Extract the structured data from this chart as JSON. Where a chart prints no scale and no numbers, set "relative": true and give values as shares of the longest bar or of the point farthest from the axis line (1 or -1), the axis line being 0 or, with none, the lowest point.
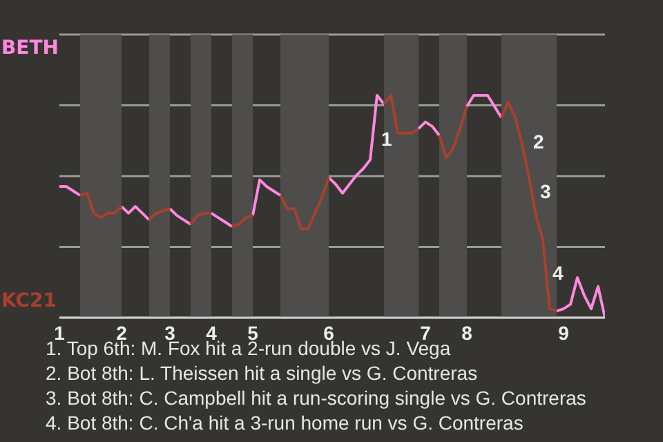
{
  "chart_data": {
    "type": "line",
    "relative": true,
    "categories": [
      "1",
      null,
      null,
      null,
      null,
      null,
      null,
      null,
      null,
      "2",
      null,
      null,
      null,
      null,
      null,
      null,
      "3",
      null,
      null,
      null,
      null,
      null,
      "4",
      null,
      null,
      null,
      null,
      null,
      "5",
      null,
      null,
      null,
      null,
      null,
      null,
      null,
      null,
      null,
      null,
      "6",
      null,
      null,
      null,
      null,
      null,
      null,
      null,
      null,
      null,
      null,
      null,
      null,
      null,
      "7",
      null,
      null,
      null,
      null,
      null,
      "8",
      null,
      null,
      null,
      null,
      null,
      null,
      null,
      null,
      null,
      null,
      null,
      null,
      null,
      "9",
      null,
      null,
      null,
      null,
      null,
      null
    ],
    "grid": "y",
    "marker": "none",
    "line_style": "solid",
    "series": [
      {
        "name": "BETH",
        "color": "#ff88e0",
        "values": [
          0.59,
          0.59,
          0.57,
          0.55,
          null,
          null,
          null,
          null,
          null,
          0.5,
          0.47,
          0.5,
          0.47,
          0.44,
          null,
          null,
          0.49,
          0.46,
          0.44,
          0.42,
          null,
          null,
          0.47,
          0.45,
          0.43,
          0.41,
          null,
          null,
          0.46,
          0.62,
          0.59,
          0.57,
          0.55,
          null,
          null,
          null,
          null,
          null,
          null,
          0.63,
          0.6,
          0.56,
          0.6,
          0.64,
          0.67,
          0.71,
          1,
          0.96,
          null,
          null,
          null,
          null,
          0.85,
          0.88,
          0.86,
          0.82,
          null,
          null,
          null,
          0.95,
          1,
          1,
          1,
          0.95,
          0.9,
          null,
          null,
          null,
          null,
          null,
          null,
          null,
          0.03,
          0.04,
          0.06,
          0.18,
          0.1,
          0.04,
          0.14,
          0
        ]
      },
      {
        "name": "KC21",
        "color": "#a8402e",
        "values": [
          null,
          null,
          null,
          0.55,
          0.56,
          0.47,
          0.45,
          0.47,
          0.47,
          0.5,
          null,
          null,
          null,
          0.44,
          0.47,
          0.48,
          0.49,
          null,
          null,
          0.42,
          0.46,
          0.47,
          0.47,
          null,
          null,
          0.41,
          0.42,
          0.45,
          0.46,
          null,
          null,
          null,
          0.55,
          0.49,
          0.49,
          0.4,
          0.4,
          0.47,
          0.54,
          0.63,
          null,
          null,
          null,
          null,
          null,
          null,
          null,
          0.96,
          1,
          0.83,
          0.83,
          0.83,
          0.85,
          null,
          null,
          0.82,
          0.72,
          0.76,
          0.85,
          0.95,
          null,
          null,
          null,
          null,
          0.9,
          0.97,
          0.9,
          0.78,
          0.63,
          0.46,
          0.35,
          0.04,
          0.03,
          null,
          null,
          null,
          null,
          null,
          null,
          null
        ]
      }
    ],
    "annotations": [
      "1",
      "2",
      "3",
      "4",
      "1. Top 6th: M. Fox hit a 2-run double vs J. Vega",
      "2. Bot 8th: L. Theissen hit a single vs G. Contreras",
      "3. Bot 8th: C. Campbell hit a run-scoring single vs G. Contreras",
      "4. Bot 8th: C. Ch'a hit a 3-run home run vs G. Contreras"
    ]
  }
}
